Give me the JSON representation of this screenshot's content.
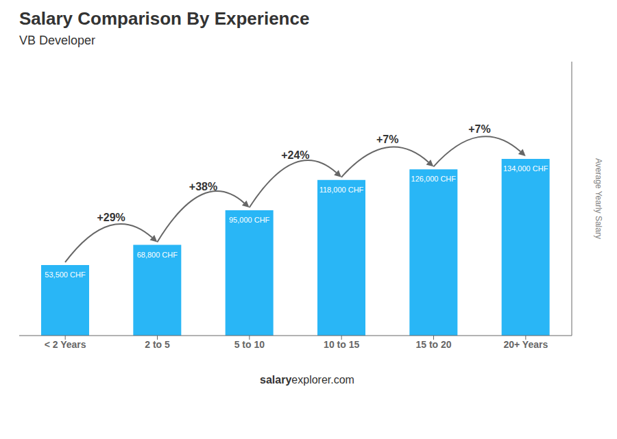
{
  "chart_data": {
    "type": "bar",
    "title": "Salary Comparison By Experience",
    "subtitle": "VB Developer",
    "y_label": "Average Yearly Salary",
    "categories": [
      "< 2 Years",
      "2 to 5",
      "5 to 10",
      "10 to 15",
      "15 to 20",
      "20+ Years"
    ],
    "values": [
      53500,
      68800,
      95000,
      118000,
      126000,
      134000
    ],
    "value_labels": [
      "53,500 CHF",
      "68,800 CHF",
      "95,000 CHF",
      "118,000 CHF",
      "126,000 CHF",
      "134,000 CHF"
    ],
    "data_labels": true,
    "annotations": [
      "+29%",
      "+38%",
      "+24%",
      "+7%",
      "+7%"
    ],
    "footer": [
      "salary",
      "explorer.com"
    ],
    "color": "#29b6f6",
    "ylim": [
      0,
      207700
    ],
    "tick_labels": "x",
    "grid": false
  }
}
